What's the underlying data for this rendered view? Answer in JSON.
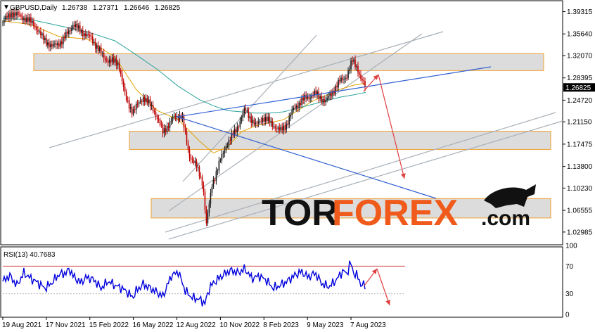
{
  "header": {
    "symbol_label": "GBPUSD,Daily",
    "ohlc": [
      "1.26738",
      "1.27371",
      "1.26646",
      "1.26825"
    ],
    "indicator_label": "RSI(13) 40.7683",
    "menu_glyph": "▼"
  },
  "logo": {
    "part1": "TOR",
    "part2": "FOREX",
    "part3": ".com",
    "bull_icon": "bull-icon",
    "colors": {
      "dark": "#111111",
      "orange": "#f05a1a"
    }
  },
  "colors": {
    "bull_candle": "#1a1a1a",
    "bear_candle": "#c00000",
    "ma_fast": "#e0a000",
    "ma_slow": "#2aa39a",
    "trendline": "#3060d0",
    "channel": "#a8b0b8",
    "zone_fill": "#dcdcdc",
    "zone_border": "#f0a030",
    "forecast_arrow": "#e04040",
    "rsi_line": "#0000dd",
    "rsi_level_top": "#cc4444",
    "current_price_bg": "#000000"
  },
  "chart_data": [
    {
      "type": "line",
      "name": "price",
      "ylim": [
        1.01,
        1.41
      ],
      "y_ticks": [
        "1.39315",
        "1.35640",
        "1.32070",
        "1.28395",
        "1.24720",
        "1.21150",
        "1.17475",
        "1.13800",
        "1.10230",
        "1.06555",
        "1.02985"
      ],
      "y_tick_values": [
        1.39315,
        1.3564,
        1.3207,
        1.28395,
        1.2472,
        1.2115,
        1.17475,
        1.138,
        1.1023,
        1.06555,
        1.02985
      ],
      "current_price": "1.26825",
      "current_price_value": 1.26825,
      "x_labels": [
        "19 Aug 2021",
        "17 Nov 2021",
        "15 Feb 2022",
        "16 May 2022",
        "12 Aug 2022",
        "10 Nov 2022",
        "8 Feb 2023",
        "9 May 2023",
        "7 Aug 2023"
      ],
      "x_label_idx": [
        0,
        62,
        124,
        186,
        248,
        310,
        372,
        434,
        496
      ],
      "zones": [
        [
          1.296,
          1.324
        ],
        [
          1.166,
          1.196
        ],
        [
          1.053,
          1.085
        ]
      ],
      "path_points": [
        [
          0,
          1.376
        ],
        [
          12,
          1.391
        ],
        [
          30,
          1.383
        ],
        [
          45,
          1.372
        ],
        [
          55,
          1.352
        ],
        [
          70,
          1.335
        ],
        [
          85,
          1.345
        ],
        [
          100,
          1.372
        ],
        [
          110,
          1.362
        ],
        [
          125,
          1.35
        ],
        [
          135,
          1.334
        ],
        [
          145,
          1.315
        ],
        [
          165,
          1.308
        ],
        [
          175,
          1.25
        ],
        [
          185,
          1.228
        ],
        [
          200,
          1.252
        ],
        [
          215,
          1.232
        ],
        [
          228,
          1.195
        ],
        [
          245,
          1.22
        ],
        [
          255,
          1.222
        ],
        [
          265,
          1.158
        ],
        [
          275,
          1.14
        ],
        [
          285,
          1.11
        ],
        [
          290,
          1.042
        ],
        [
          298,
          1.108
        ],
        [
          310,
          1.148
        ],
        [
          318,
          1.173
        ],
        [
          325,
          1.184
        ],
        [
          335,
          1.205
        ],
        [
          345,
          1.232
        ],
        [
          360,
          1.205
        ],
        [
          370,
          1.218
        ],
        [
          380,
          1.212
        ],
        [
          395,
          1.196
        ],
        [
          405,
          1.209
        ],
        [
          415,
          1.235
        ],
        [
          430,
          1.25
        ],
        [
          445,
          1.258
        ],
        [
          460,
          1.245
        ],
        [
          470,
          1.262
        ],
        [
          480,
          1.278
        ],
        [
          490,
          1.288
        ],
        [
          498,
          1.312
        ],
        [
          505,
          1.302
        ],
        [
          510,
          1.282
        ],
        [
          517,
          1.268
        ]
      ],
      "ma_fast_points": [
        [
          0,
          1.378
        ],
        [
          40,
          1.372
        ],
        [
          80,
          1.352
        ],
        [
          120,
          1.348
        ],
        [
          160,
          1.318
        ],
        [
          190,
          1.265
        ],
        [
          220,
          1.23
        ],
        [
          250,
          1.215
        ],
        [
          280,
          1.18
        ],
        [
          300,
          1.16
        ],
        [
          320,
          1.17
        ],
        [
          340,
          1.195
        ],
        [
          360,
          1.205
        ],
        [
          380,
          1.21
        ],
        [
          400,
          1.215
        ],
        [
          420,
          1.23
        ],
        [
          440,
          1.245
        ],
        [
          460,
          1.255
        ],
        [
          480,
          1.265
        ],
        [
          500,
          1.272
        ],
        [
          517,
          1.275
        ]
      ],
      "ma_slow_points": [
        [
          0,
          1.382
        ],
        [
          40,
          1.38
        ],
        [
          80,
          1.37
        ],
        [
          120,
          1.36
        ],
        [
          160,
          1.345
        ],
        [
          190,
          1.322
        ],
        [
          220,
          1.298
        ],
        [
          250,
          1.27
        ],
        [
          280,
          1.248
        ],
        [
          300,
          1.238
        ],
        [
          320,
          1.23
        ],
        [
          340,
          1.228
        ],
        [
          360,
          1.226
        ],
        [
          380,
          1.226
        ],
        [
          400,
          1.228
        ],
        [
          420,
          1.234
        ],
        [
          440,
          1.24
        ],
        [
          460,
          1.246
        ],
        [
          480,
          1.252
        ],
        [
          500,
          1.256
        ],
        [
          517,
          1.26
        ]
      ]
    },
    {
      "type": "line",
      "name": "RSI(13)",
      "ylim": [
        0,
        100
      ],
      "y_ticks": [
        "100",
        "70",
        "30",
        "0"
      ],
      "y_tick_values": [
        100,
        70,
        30,
        0
      ],
      "levels": [
        70,
        30
      ],
      "current_value": 40.7683,
      "points": [
        [
          0,
          48
        ],
        [
          10,
          56
        ],
        [
          20,
          42
        ],
        [
          30,
          60
        ],
        [
          40,
          52
        ],
        [
          50,
          46
        ],
        [
          60,
          38
        ],
        [
          70,
          46
        ],
        [
          80,
          58
        ],
        [
          90,
          60
        ],
        [
          95,
          66
        ],
        [
          100,
          56
        ],
        [
          110,
          46
        ],
        [
          120,
          54
        ],
        [
          130,
          50
        ],
        [
          140,
          38
        ],
        [
          150,
          48
        ],
        [
          160,
          42
        ],
        [
          170,
          38
        ],
        [
          180,
          30
        ],
        [
          185,
          24
        ],
        [
          190,
          34
        ],
        [
          200,
          44
        ],
        [
          210,
          38
        ],
        [
          220,
          32
        ],
        [
          228,
          26
        ],
        [
          240,
          56
        ],
        [
          250,
          62
        ],
        [
          260,
          34
        ],
        [
          270,
          24
        ],
        [
          280,
          22
        ],
        [
          288,
          16
        ],
        [
          295,
          40
        ],
        [
          305,
          50
        ],
        [
          315,
          58
        ],
        [
          325,
          64
        ],
        [
          335,
          60
        ],
        [
          345,
          66
        ],
        [
          355,
          52
        ],
        [
          365,
          56
        ],
        [
          375,
          50
        ],
        [
          385,
          38
        ],
        [
          395,
          42
        ],
        [
          405,
          48
        ],
        [
          415,
          56
        ],
        [
          425,
          62
        ],
        [
          435,
          54
        ],
        [
          445,
          60
        ],
        [
          455,
          44
        ],
        [
          465,
          40
        ],
        [
          475,
          50
        ],
        [
          485,
          64
        ],
        [
          490,
          58
        ],
        [
          495,
          76
        ],
        [
          500,
          60
        ],
        [
          505,
          56
        ],
        [
          510,
          44
        ],
        [
          517,
          40.8
        ]
      ]
    }
  ]
}
